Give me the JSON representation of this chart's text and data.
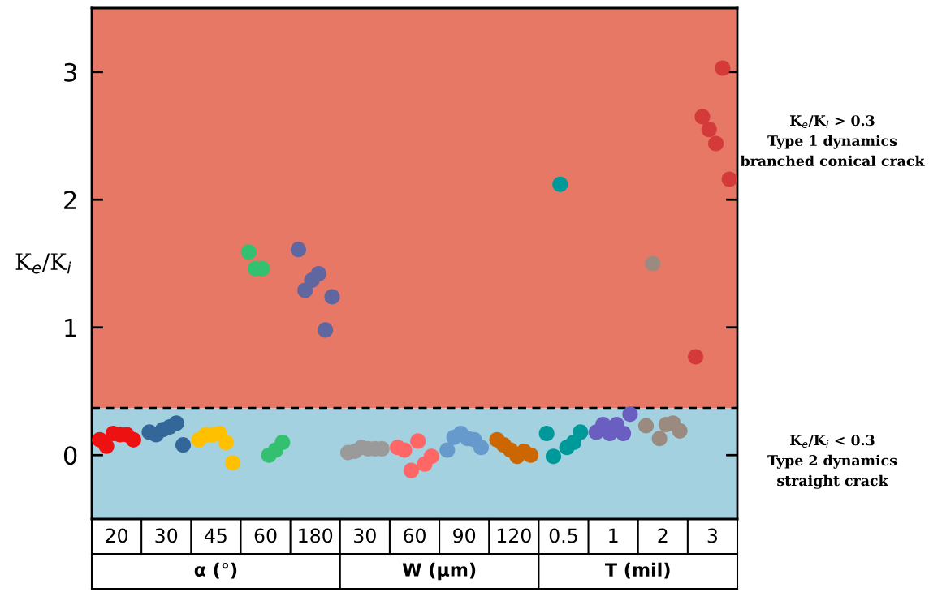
{
  "chart_data": {
    "type": "scatter",
    "ylabel": "K$_{e}$/K$_{i}$",
    "marker": "circle",
    "grid": false,
    "categories": [
      "20",
      "30",
      "45",
      "60",
      "180",
      "30",
      "60",
      "90",
      "120",
      "0.5",
      "1",
      "2",
      "3"
    ],
    "ylim": [
      -0.5,
      3.5
    ],
    "yticks": [
      0,
      1,
      2,
      3
    ],
    "bands": [
      {
        "axis": "y",
        "from": -0.5,
        "to": 0.37,
        "color": "#a3d1e0"
      },
      {
        "axis": "y",
        "from": 0.37,
        "to": 3.5,
        "color": "#e77865"
      }
    ],
    "ref_lines": [
      {
        "axis": "y",
        "value": 0.37,
        "color": "#000000",
        "line_style": "dashed"
      }
    ],
    "annotations": [
      "α (°)",
      "W (µm)",
      "T (mil)",
      "K$_{e}$/K$_{i}$ > 0.3\nType 1 dynamics\nbranched conical crack",
      "K$_{e}$/K$_{i}$ < 0.3\nType 2 dynamics\nstraight crack"
    ],
    "series": [
      {
        "colors": [
          "#ee1111",
          "#336699",
          "#ffc000",
          "#33c070",
          "#60669f",
          "#9a9a9a",
          "#ff6666",
          "#6699cc",
          "#cc6600",
          "#009999",
          "#6a5fc0",
          "#9a8a80",
          "#d43a3a"
        ],
        "values": [
          0.12,
          0.18,
          0.12,
          1.59,
          1.61,
          0.02,
          0.06,
          0.04,
          0.12,
          0.17,
          0.18,
          0.23,
          0.77
        ]
      },
      {
        "colors": [
          "#ee1111",
          "#336699",
          "#ffc000",
          "#33c070",
          "#60669f",
          "#9a9a9a",
          "#ff6666",
          "#6699cc",
          "#cc6600",
          "#009999",
          "#6a5fc0",
          "#9a8a80",
          "#d43a3a"
        ],
        "values": [
          0.07,
          0.16,
          0.16,
          1.46,
          1.29,
          0.03,
          0.04,
          0.14,
          0.08,
          -0.01,
          0.24,
          1.5,
          2.65
        ]
      },
      {
        "colors": [
          "#ee1111",
          "#336699",
          "#ffc000",
          "#33c070",
          "#60669f",
          "#9a9a9a",
          "#ff6666",
          "#6699cc",
          "#cc6600",
          "#009999",
          "#6a5fc0",
          "#9a8a80",
          "#d43a3a"
        ],
        "values": [
          0.17,
          0.2,
          0.16,
          1.46,
          1.37,
          0.06,
          -0.12,
          0.17,
          0.04,
          2.12,
          0.17,
          0.13,
          2.55
        ]
      },
      {
        "colors": [
          "#ee1111",
          "#336699",
          "#ffc000",
          "#33c070",
          "#60669f",
          "#9a9a9a",
          "#ff6666",
          "#6699cc",
          "#cc6600",
          "#009999",
          "#6a5fc0",
          "#9a8a80",
          "#d43a3a"
        ],
        "values": [
          0.16,
          0.22,
          0.17,
          0.0,
          1.42,
          0.05,
          0.11,
          0.13,
          -0.01,
          0.06,
          0.24,
          0.24,
          2.44
        ]
      },
      {
        "colors": [
          "#ee1111",
          "#336699",
          "#ffc000",
          "#33c070",
          "#60669f",
          "#9a9a9a",
          "#ff6666",
          "#6699cc",
          "#cc6600",
          "#009999",
          "#6a5fc0",
          "#9a8a80",
          "#d43a3a"
        ],
        "values": [
          0.16,
          0.25,
          0.1,
          0.04,
          0.98,
          0.05,
          -0.07,
          0.12,
          0.03,
          0.1,
          0.17,
          0.25,
          3.03
        ]
      },
      {
        "colors": [
          "#ee1111",
          "#336699",
          "#ffc000",
          "#33c070",
          "#60669f",
          "#9a9a9a",
          "#ff6666",
          "#6699cc",
          "#cc6600",
          "#009999",
          "#6a5fc0",
          "#9a8a80",
          "#d43a3a"
        ],
        "values": [
          0.12,
          0.08,
          -0.06,
          0.1,
          1.24,
          0.05,
          -0.01,
          0.06,
          0.0,
          0.18,
          0.32,
          0.19,
          2.16
        ]
      }
    ]
  }
}
